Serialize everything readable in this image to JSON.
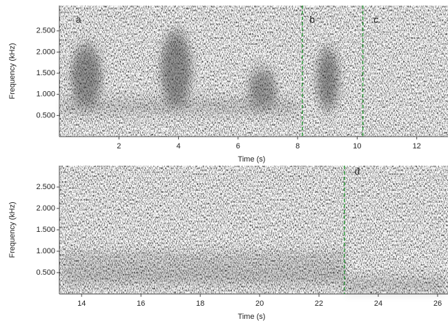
{
  "chart_data": [
    {
      "type": "spectrogram",
      "xlabel": "Time (s)",
      "ylabel": "Frequency (kHz)",
      "xlim": [
        0,
        13.05
      ],
      "xticks": [
        2,
        4,
        6,
        8,
        10,
        12
      ],
      "ylim": [
        0,
        3.1
      ],
      "yticks": [
        {
          "value": 0.5,
          "label": "0.500"
        },
        {
          "value": 1,
          "label": "1.000"
        },
        {
          "value": 1.5,
          "label": "1.500"
        },
        {
          "value": 2,
          "label": "2.000"
        },
        {
          "value": 2.5,
          "label": "2.500"
        }
      ],
      "markers": [
        8.16,
        10.19
      ],
      "marker_color": "#2e9a3a",
      "annotations": [
        {
          "text": "a",
          "x": 0.55,
          "y": 2.75
        },
        {
          "text": "b",
          "x": 8.4,
          "y": 2.75
        },
        {
          "text": "c",
          "x": 10.55,
          "y": 2.75
        }
      ]
    },
    {
      "type": "spectrogram",
      "xlabel": "Time (s)",
      "ylabel": "Frequency (kHz)",
      "xlim": [
        13.25,
        26.35
      ],
      "xticks": [
        14,
        16,
        18,
        20,
        22,
        24,
        26
      ],
      "ylim": [
        0,
        3.0
      ],
      "yticks": [
        {
          "value": 0.5,
          "label": "0.500"
        },
        {
          "value": 1,
          "label": "1.000"
        },
        {
          "value": 1.5,
          "label": "1.500"
        },
        {
          "value": 2,
          "label": "2.000"
        },
        {
          "value": 2.5,
          "label": "2.500"
        }
      ],
      "markers": [
        22.86
      ],
      "marker_color": "#2e9a3a",
      "annotations": [
        {
          "text": "d",
          "x": 23.2,
          "y": 2.85
        }
      ]
    }
  ]
}
